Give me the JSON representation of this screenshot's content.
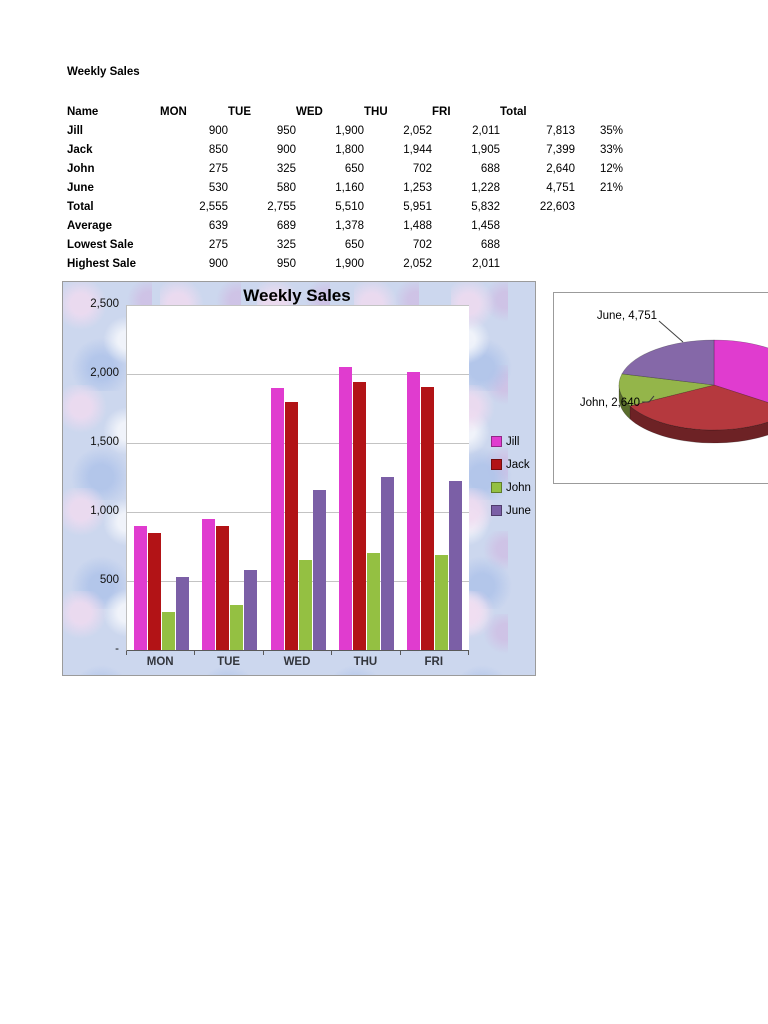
{
  "page": {
    "title": "Weekly Sales"
  },
  "table": {
    "headers": [
      "Name",
      "MON",
      "TUE",
      "WED",
      "THU",
      "FRI",
      "Total",
      ""
    ],
    "rows": [
      {
        "label": "Jill",
        "values": [
          "900",
          "950",
          "1,900",
          "2,052",
          "2,011",
          "7,813",
          "35%"
        ]
      },
      {
        "label": "Jack",
        "values": [
          "850",
          "900",
          "1,800",
          "1,944",
          "1,905",
          "7,399",
          "33%"
        ]
      },
      {
        "label": "John",
        "values": [
          "275",
          "325",
          "650",
          "702",
          "688",
          "2,640",
          "12%"
        ]
      },
      {
        "label": "June",
        "values": [
          "530",
          "580",
          "1,160",
          "1,253",
          "1,228",
          "4,751",
          "21%"
        ]
      },
      {
        "label": "Total",
        "values": [
          "2,555",
          "2,755",
          "5,510",
          "5,951",
          "5,832",
          "22,603",
          ""
        ]
      },
      {
        "label": "Average",
        "values": [
          "639",
          "689",
          "1,378",
          "1,488",
          "1,458",
          "",
          ""
        ]
      },
      {
        "label": "Lowest Sale",
        "values": [
          "275",
          "325",
          "650",
          "702",
          "688",
          "",
          ""
        ]
      },
      {
        "label": "Highest Sale",
        "values": [
          "900",
          "950",
          "1,900",
          "2,052",
          "2,011",
          "",
          ""
        ]
      }
    ]
  },
  "chart_data": [
    {
      "type": "bar",
      "title": "Weekly Sales",
      "categories": [
        "MON",
        "TUE",
        "WED",
        "THU",
        "FRI"
      ],
      "series": [
        {
          "name": "Jill",
          "color": "#e03ccf",
          "values": [
            900,
            950,
            1900,
            2052,
            2011
          ]
        },
        {
          "name": "Jack",
          "color": "#b21316",
          "values": [
            850,
            900,
            1800,
            1944,
            1905
          ]
        },
        {
          "name": "John",
          "color": "#94c042",
          "values": [
            275,
            325,
            650,
            702,
            688
          ]
        },
        {
          "name": "June",
          "color": "#7b5fa6",
          "values": [
            530,
            580,
            1160,
            1253,
            1228
          ]
        }
      ],
      "ylim": [
        0,
        2500
      ],
      "ytick_labels": [
        "-",
        "500",
        "1,000",
        "1,500",
        "2,000",
        "2,500"
      ],
      "grid": true,
      "legend_position": "right"
    },
    {
      "type": "pie",
      "style": "3d",
      "slices": [
        {
          "name": "Jill",
          "value": 7813,
          "color": "#e03ccf"
        },
        {
          "name": "Jack",
          "value": 7399,
          "color": "#b5393e"
        },
        {
          "name": "John",
          "value": 2640,
          "color": "#94b54a"
        },
        {
          "name": "June",
          "value": 4751,
          "color": "#8568a8"
        }
      ],
      "labels": [
        {
          "text": "June, 4,751",
          "slice": "June"
        },
        {
          "text": "John, 2,640",
          "slice": "John"
        }
      ]
    }
  ]
}
